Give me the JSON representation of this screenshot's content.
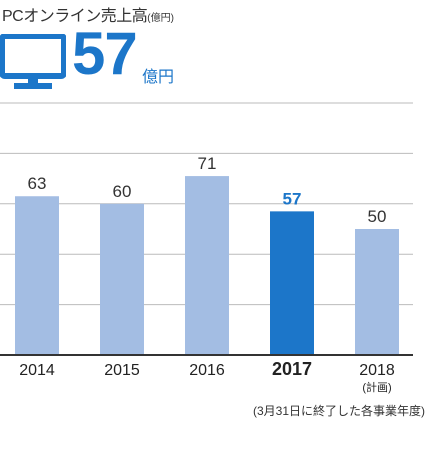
{
  "title": "PCオンライン売上高",
  "title_unit": "(億円)",
  "headline": {
    "icon": "desktop-monitor-icon",
    "value": "57",
    "unit": "億円"
  },
  "footnote": "(3月31日に終了した各事業年度)",
  "colors": {
    "bar": "#a3bde3",
    "highlight": "#1c76c9",
    "grid": "#bbbbbb",
    "axis": "#333333"
  },
  "chart_data": {
    "type": "bar",
    "categories": [
      "2014",
      "2015",
      "2016",
      "2017",
      "2018"
    ],
    "category_notes": [
      "",
      "",
      "",
      "",
      "(計画)"
    ],
    "values": [
      63,
      60,
      71,
      57,
      50
    ],
    "highlight_index": 3,
    "ylim": [
      0,
      100
    ],
    "grid": true,
    "xlabel": "",
    "ylabel": ""
  }
}
